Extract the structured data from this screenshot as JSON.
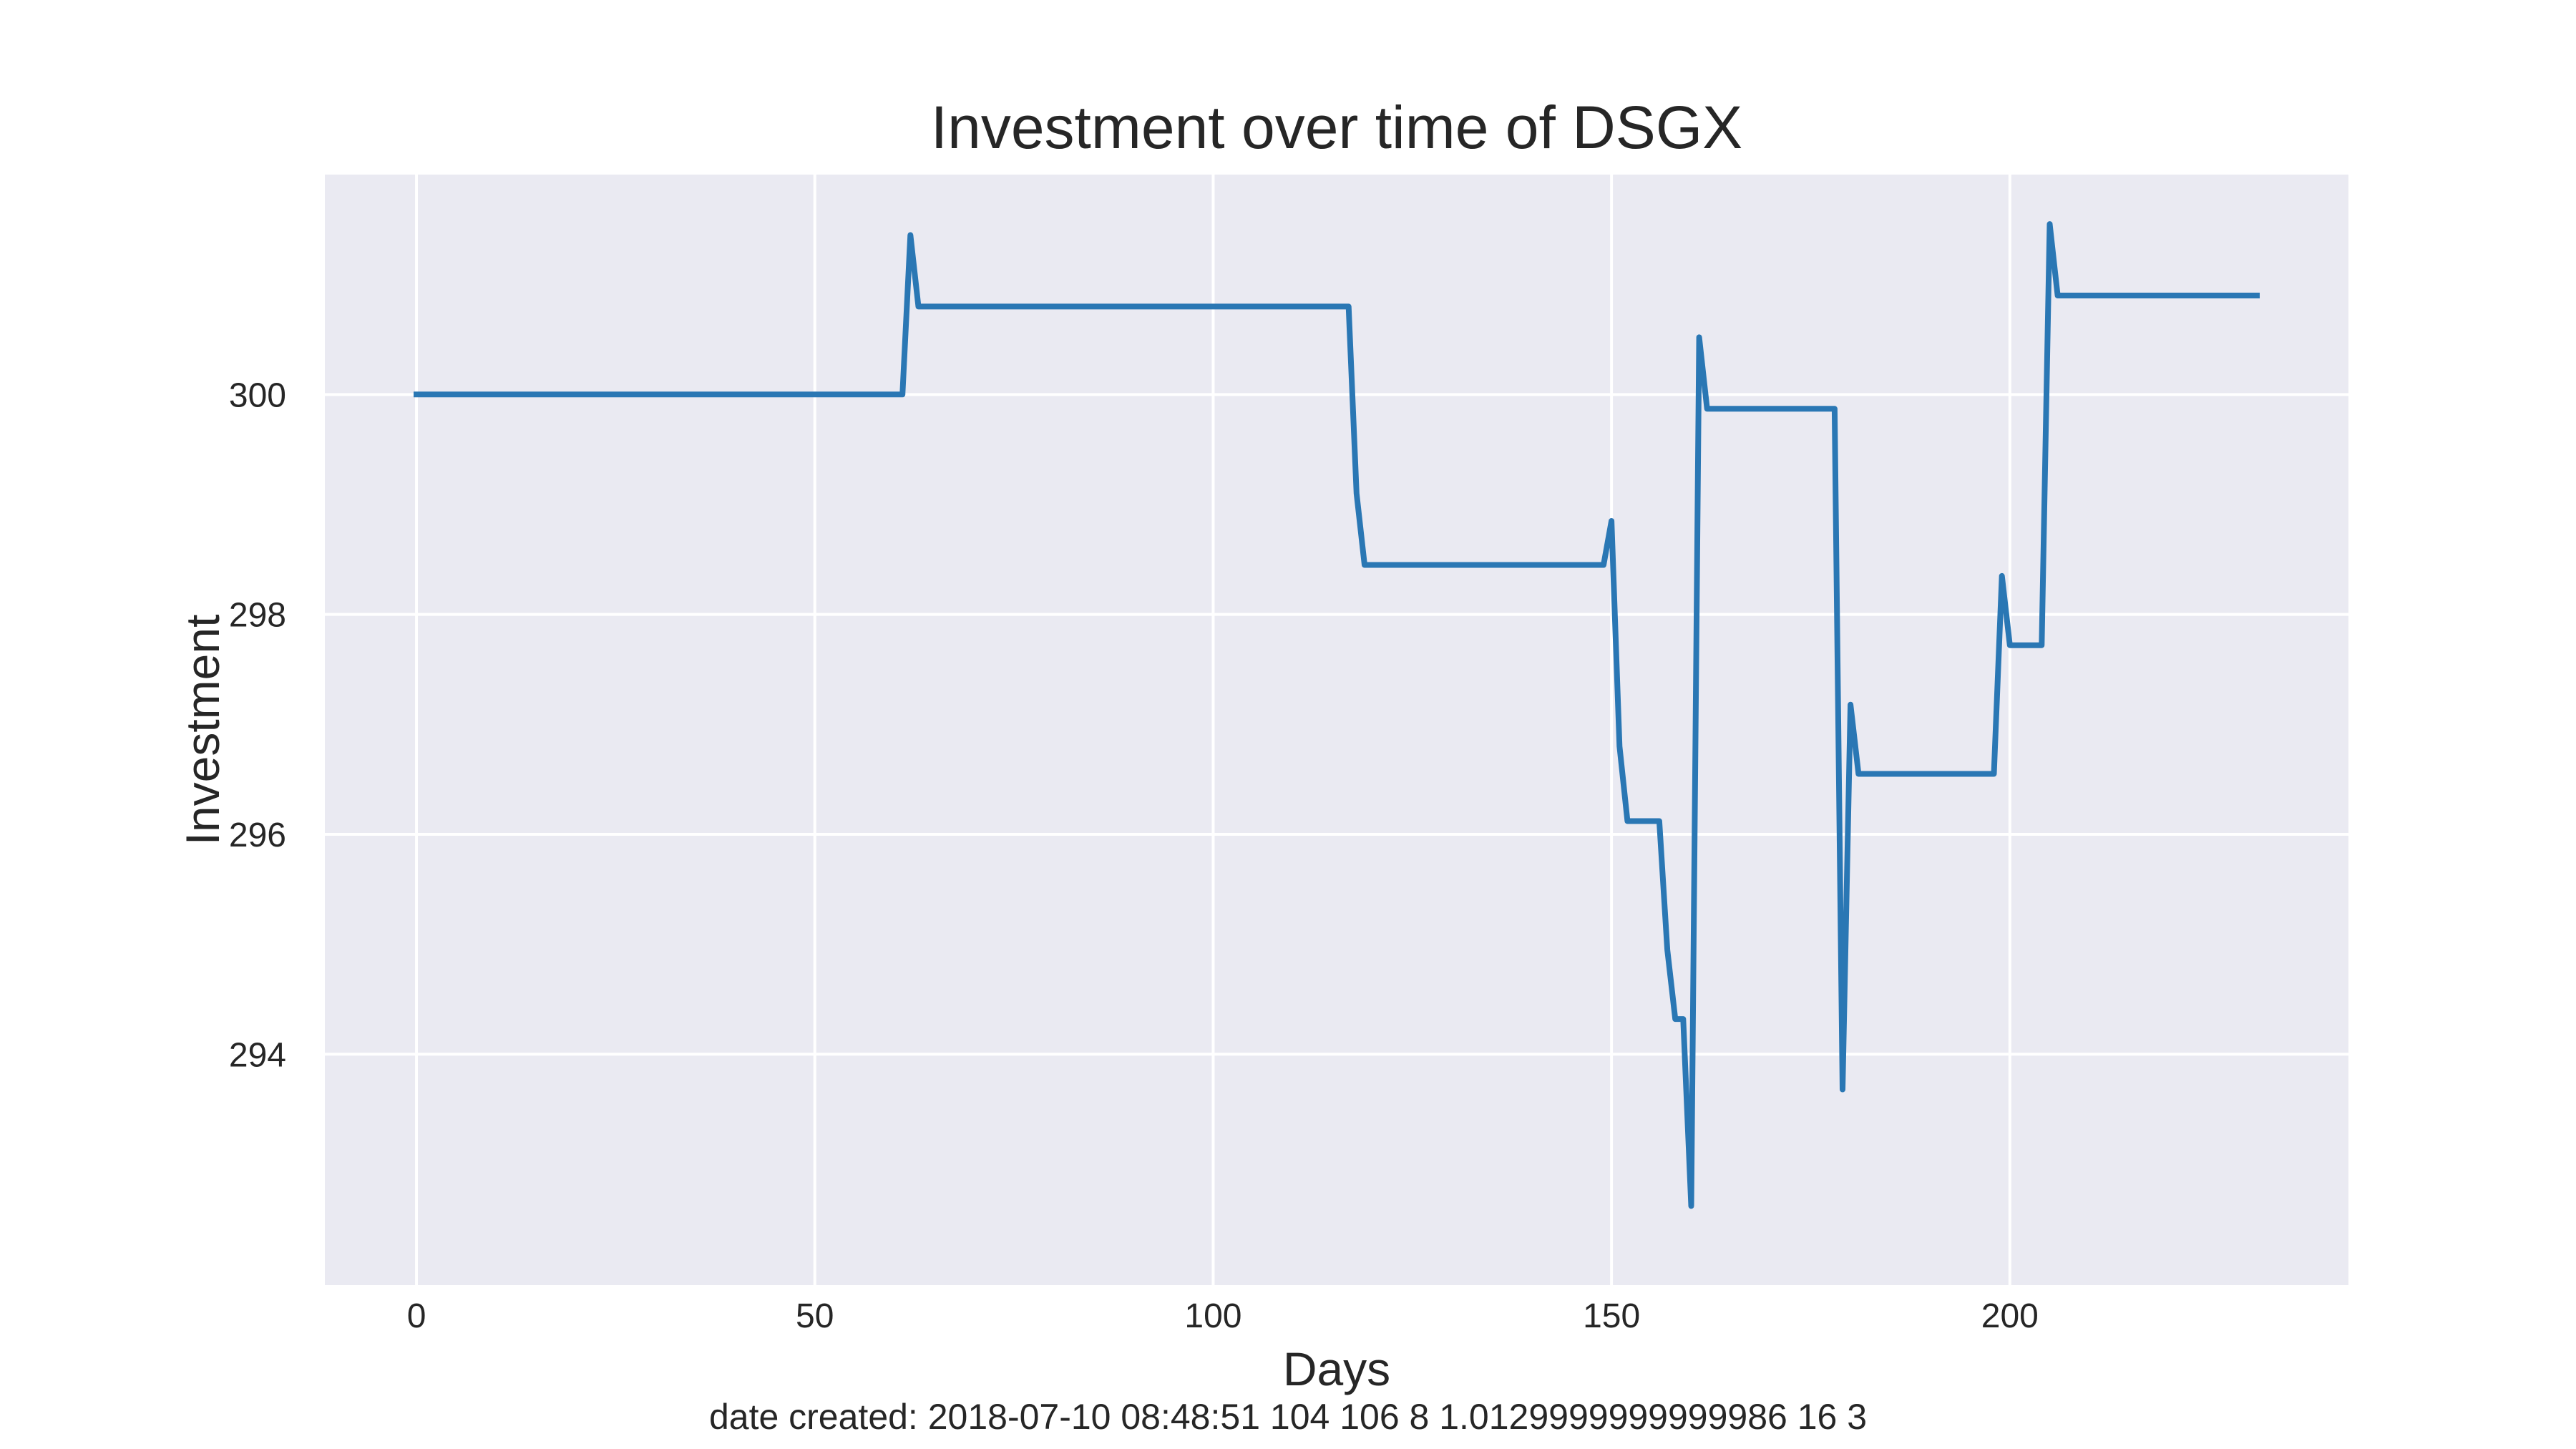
{
  "chart_data": {
    "type": "line",
    "title": "Investment over time of DSGX",
    "xlabel": "Days",
    "ylabel": "Investment",
    "footer": "date created: 2018-07-10 08:48:51 104 106 8 1.0129999999999986 16 3",
    "xlim": [
      -11.5,
      242.5
    ],
    "ylim": [
      291.9,
      302.0
    ],
    "xticks": [
      0,
      50,
      100,
      150,
      200
    ],
    "yticks": [
      294,
      296,
      298,
      300
    ],
    "grid": true,
    "colors": {
      "background": "#eaeaf2",
      "grid": "#ffffff",
      "line": "#2a77b4"
    },
    "series": [
      {
        "x": [
          0,
          61,
          62,
          63,
          117,
          118,
          119,
          149,
          150,
          151,
          152,
          156,
          157,
          158,
          159,
          160,
          161,
          162,
          178,
          179,
          180,
          181,
          198,
          199,
          200,
          204,
          205,
          206,
          231
        ],
        "y": [
          300.0,
          300.0,
          301.45,
          300.8,
          300.8,
          299.1,
          298.45,
          298.45,
          298.85,
          296.8,
          296.12,
          296.12,
          294.95,
          294.32,
          294.32,
          292.62,
          300.52,
          299.87,
          299.87,
          293.68,
          297.18,
          296.55,
          296.55,
          298.35,
          297.72,
          297.72,
          301.55,
          300.9,
          300.9
        ]
      }
    ]
  }
}
